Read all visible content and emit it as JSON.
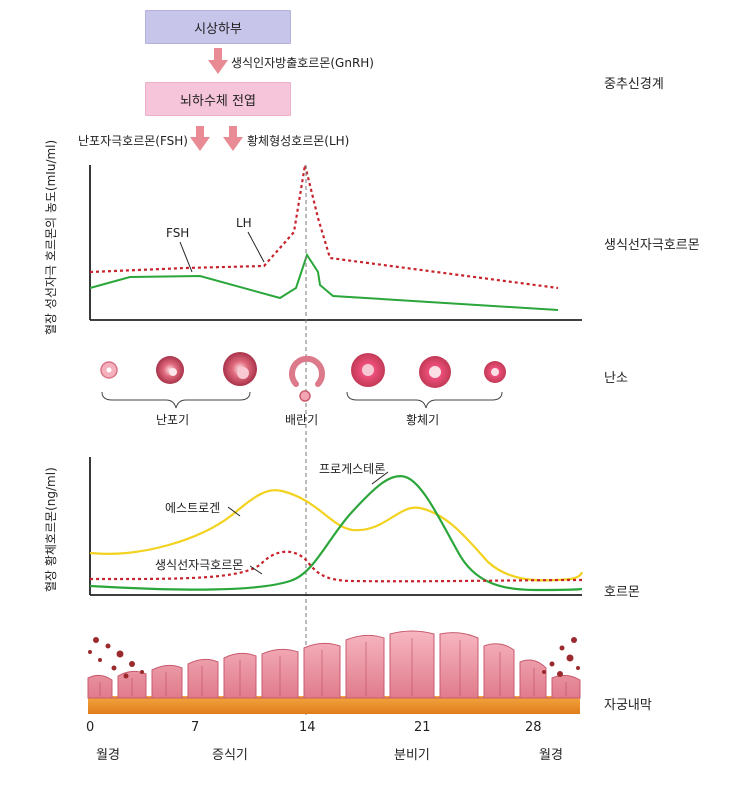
{
  "hypothalamus": "시상하부",
  "gnrh": "생식인자방출호르몬(GnRH)",
  "pituitary": "뇌하수체 전엽",
  "fsh_release": "난포자극호르몬(FSH)",
  "lh_release": "황체형성호르몬(LH)",
  "side_labels": {
    "cns": "중추신경계",
    "gonadotropin": "생식선자극호르몬",
    "ovary": "난소",
    "hormone": "호르몬",
    "endometrium": "자궁내막"
  },
  "chart1": {
    "ylabel": "혈장 성선자극 호르몬의 농도(mIu/ml)",
    "fsh_label": "FSH",
    "lh_label": "LH"
  },
  "ovary": {
    "follicular": "난포기",
    "ovulation": "배란기",
    "luteal": "황체기"
  },
  "chart2": {
    "ylabel": "혈장 황체호르몬(ng/ml)",
    "progesterone": "프로게스테론",
    "estrogen": "에스트로겐",
    "gonadotropin": "생식선자극호르몬"
  },
  "axis": {
    "ticks": [
      "0",
      "7",
      "14",
      "21",
      "28"
    ],
    "phases": [
      "월경",
      "증식기",
      "분비기",
      "월경"
    ]
  },
  "colors": {
    "fsh": "#2aa63a",
    "lh": "#c8232c",
    "estrogen": "#f2d21e",
    "progesterone": "#2aa63a",
    "arrow": "#e98b94",
    "endometrium": "#e88c9a",
    "basal": "#e8942c"
  }
}
